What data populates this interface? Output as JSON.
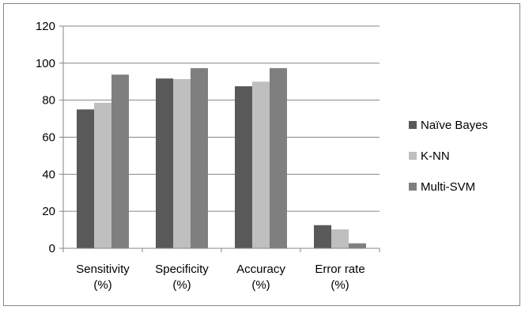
{
  "chart_data": {
    "type": "bar",
    "categories": [
      [
        "Sensitivity",
        "(%)"
      ],
      [
        "Specificity",
        "(%)"
      ],
      [
        "Accuracy",
        "(%)"
      ],
      [
        "Error rate",
        "(%)"
      ]
    ],
    "series": [
      {
        "name": "Naïve Bayes",
        "color": "#595959",
        "values": [
          75,
          91.7,
          87.5,
          12.5
        ]
      },
      {
        "name": "K-NN",
        "color": "#bfbfbf",
        "values": [
          78.6,
          91.4,
          90,
          10.2
        ]
      },
      {
        "name": "Multi-SVM",
        "color": "#7f7f7f",
        "values": [
          93.8,
          97.3,
          97.3,
          2.7
        ]
      }
    ],
    "title": "",
    "xlabel": "",
    "ylabel": "",
    "ylim": [
      0,
      120
    ],
    "yticks": [
      0,
      20,
      40,
      60,
      80,
      100,
      120
    ],
    "grid": true,
    "legend_position": "right"
  }
}
